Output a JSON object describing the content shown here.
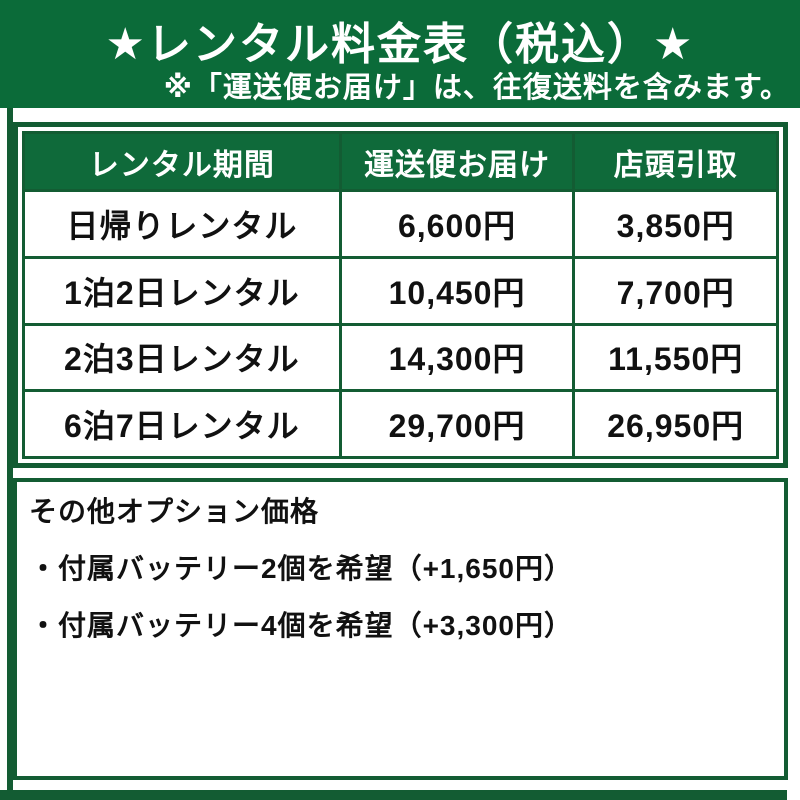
{
  "colors": {
    "background_green": "#0b6b39",
    "border_green": "#135c33",
    "header_fill_green": "#0f6a3a",
    "text_white": "#ffffff",
    "text_black": "#111111"
  },
  "header": {
    "title": "★レンタル料金表（税込）★",
    "note": "※「運送便お届け」は、往復送料を含みます。"
  },
  "price_table": {
    "columns": {
      "period": "レンタル期間",
      "delivery": "運送便お届け",
      "pickup": "店頭引取"
    },
    "rows": [
      {
        "period": "日帰りレンタル",
        "delivery": "6,600円",
        "pickup": "3,850円"
      },
      {
        "period": "1泊2日レンタル",
        "delivery": "10,450円",
        "pickup": "7,700円"
      },
      {
        "period": "2泊3日レンタル",
        "delivery": "14,300円",
        "pickup": "11,550円"
      },
      {
        "period": "6泊7日レンタル",
        "delivery": "29,700円",
        "pickup": "26,950円"
      }
    ]
  },
  "options": {
    "heading": "その他オプション価格",
    "items": [
      "・付属バッテリー2個を希望（+1,650円）",
      "・付属バッテリー4個を希望（+3,300円）"
    ]
  }
}
